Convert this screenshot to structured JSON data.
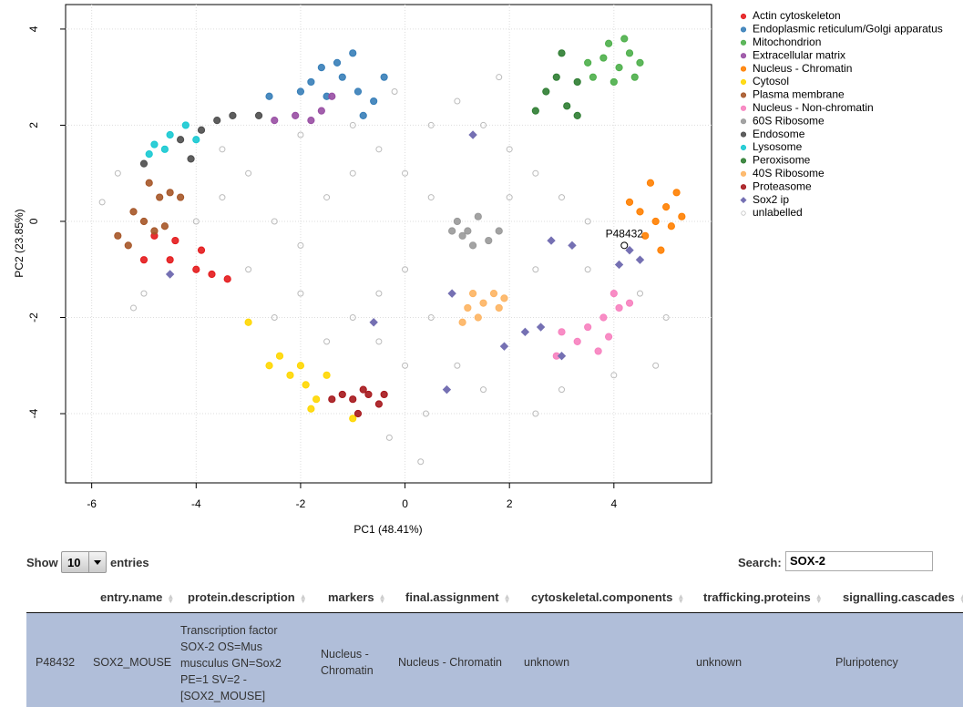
{
  "chart_data": {
    "type": "scatter",
    "xlabel": "PC1 (48.41%)",
    "ylabel": "PC2 (23.85%)",
    "xlim": [
      -6.5,
      5.87
    ],
    "ylim": [
      -5.44,
      4.51
    ],
    "xticks": [
      -6,
      -4,
      -2,
      0,
      2,
      4
    ],
    "yticks": [
      -4,
      -2,
      0,
      2,
      4
    ],
    "grid": true,
    "legend": "right",
    "series": [
      {
        "name": "Actin cytoskeleton",
        "color": "#e41a1c",
        "x": [
          -4.5,
          -4.0,
          -3.7,
          -4.8,
          -3.4,
          -5.0,
          -3.9,
          -4.4
        ],
        "y": [
          -0.8,
          -1.0,
          -1.1,
          -0.3,
          -1.2,
          -0.8,
          -0.6,
          -0.4
        ]
      },
      {
        "name": "Endoplasmic reticulum/Golgi apparatus",
        "color": "#377eb8",
        "x": [
          -1.8,
          -1.5,
          -1.2,
          -0.9,
          -0.6,
          -1.3,
          -1.0,
          -2.0,
          -0.4,
          -1.6,
          -2.6,
          -0.8
        ],
        "y": [
          2.9,
          2.6,
          3.0,
          2.7,
          2.5,
          3.3,
          3.5,
          2.7,
          3.0,
          3.2,
          2.6,
          2.2
        ]
      },
      {
        "name": "Mitochondrion",
        "color": "#4daf4a",
        "x": [
          3.8,
          4.1,
          4.3,
          3.6,
          4.0,
          4.4,
          3.9,
          4.2,
          3.5,
          4.5
        ],
        "y": [
          3.4,
          3.2,
          3.5,
          3.0,
          2.9,
          3.0,
          3.7,
          3.8,
          3.3,
          3.3
        ]
      },
      {
        "name": "Extracellular matrix",
        "color": "#984ea3",
        "x": [
          -2.5,
          -2.1,
          -1.8,
          -1.6,
          -1.4
        ],
        "y": [
          2.1,
          2.2,
          2.1,
          2.3,
          2.6
        ]
      },
      {
        "name": "Nucleus - Chromatin",
        "color": "#ff7f00",
        "x": [
          4.5,
          4.8,
          5.0,
          5.1,
          4.6,
          4.9,
          5.2,
          4.3,
          4.7,
          5.3
        ],
        "y": [
          0.2,
          0.0,
          0.3,
          -0.1,
          -0.3,
          -0.6,
          0.6,
          0.4,
          0.8,
          0.1
        ]
      },
      {
        "name": "Cytosol",
        "color": "#ffd700",
        "x": [
          -2.6,
          -2.2,
          -1.9,
          -1.7,
          -2.0,
          -1.5,
          -2.4,
          -1.8,
          -3.0,
          -1.0
        ],
        "y": [
          -3.0,
          -3.2,
          -3.4,
          -3.7,
          -3.0,
          -3.2,
          -2.8,
          -3.9,
          -2.1,
          -4.1
        ]
      },
      {
        "name": "Plasma membrane",
        "color": "#a65628",
        "x": [
          -5.2,
          -5.0,
          -4.7,
          -4.5,
          -4.3,
          -4.8,
          -5.5,
          -4.9,
          -5.3,
          -4.6
        ],
        "y": [
          0.2,
          0.0,
          0.5,
          0.6,
          0.5,
          -0.2,
          -0.3,
          0.8,
          -0.5,
          -0.1
        ]
      },
      {
        "name": "Nucleus - Non-chromatin",
        "color": "#f781bf",
        "x": [
          3.5,
          3.8,
          4.1,
          3.3,
          3.7,
          4.3,
          3.0,
          3.9,
          2.9,
          4.0
        ],
        "y": [
          -2.2,
          -2.0,
          -1.8,
          -2.5,
          -2.7,
          -1.7,
          -2.3,
          -2.4,
          -2.8,
          -1.5
        ]
      },
      {
        "name": "60S Ribosome",
        "color": "#999999",
        "x": [
          1.0,
          1.2,
          1.4,
          1.1,
          1.6,
          0.9,
          1.3,
          1.8
        ],
        "y": [
          0.0,
          -0.2,
          0.1,
          -0.3,
          -0.4,
          -0.2,
          -0.5,
          -0.2
        ]
      },
      {
        "name": "Endosome",
        "color": "#4d4d4d",
        "x": [
          -5.0,
          -4.3,
          -3.9,
          -3.6,
          -3.3,
          -4.1,
          -2.8
        ],
        "y": [
          1.2,
          1.7,
          1.9,
          2.1,
          2.2,
          1.3,
          2.2
        ]
      },
      {
        "name": "Lysosome",
        "color": "#17c9d2",
        "x": [
          -4.8,
          -4.5,
          -4.2,
          -4.6,
          -4.9,
          -4.0
        ],
        "y": [
          1.6,
          1.8,
          2.0,
          1.5,
          1.4,
          1.7
        ]
      },
      {
        "name": "Peroxisome",
        "color": "#2e7d32",
        "x": [
          2.5,
          2.9,
          3.0,
          3.3,
          3.1,
          2.7,
          3.3
        ],
        "y": [
          2.3,
          3.0,
          3.5,
          2.9,
          2.4,
          2.7,
          2.2
        ]
      },
      {
        "name": "40S Ribosome",
        "color": "#fdb462",
        "x": [
          1.2,
          1.5,
          1.8,
          1.4,
          1.7,
          1.1,
          1.9,
          1.3
        ],
        "y": [
          -1.8,
          -1.7,
          -1.8,
          -2.0,
          -1.5,
          -2.1,
          -1.6,
          -1.5
        ]
      },
      {
        "name": "Proteasome",
        "color": "#a6171c",
        "x": [
          -1.2,
          -1.0,
          -0.7,
          -0.5,
          -0.8,
          -0.4,
          -0.9,
          -1.4
        ],
        "y": [
          -3.6,
          -3.7,
          -3.6,
          -3.8,
          -3.5,
          -3.6,
          -4.0,
          -3.7
        ]
      },
      {
        "name": "Sox2 ip",
        "color": "#7570b3",
        "shape": "diamond",
        "x": [
          4.3,
          4.1,
          4.5,
          3.2,
          3.0,
          2.3,
          2.6,
          1.9,
          -4.5,
          1.3,
          0.9,
          -0.6,
          0.8,
          2.8
        ],
        "y": [
          -0.6,
          -0.9,
          -0.8,
          -0.5,
          -2.8,
          -2.3,
          -2.2,
          -2.6,
          -1.1,
          1.8,
          -1.5,
          -2.1,
          -3.5,
          -0.4
        ]
      },
      {
        "name": "unlabelled",
        "color": "#bbbbbb",
        "shape": "hollow",
        "x": [
          -5.5,
          -5.0,
          -3.5,
          -3.0,
          -2.5,
          -2.0,
          -1.5,
          -1.0,
          -0.5,
          0.0,
          0.5,
          0.0,
          -0.5,
          -1.0,
          -2.0,
          -3.0,
          -2.5,
          -1.5,
          -0.5,
          0.5,
          1.0,
          0.0,
          -0.3,
          0.3,
          0.5,
          1.0,
          1.5,
          2.0,
          2.5,
          3.0,
          3.5,
          2.0,
          2.5,
          3.5,
          4.5,
          5.0,
          4.8,
          4.0,
          3.0,
          2.5,
          1.5,
          -4.0,
          -3.5,
          -2.0,
          -1.0,
          -0.2,
          1.8,
          -5.8,
          -5.2,
          0.4
        ],
        "y": [
          1.0,
          -1.5,
          0.5,
          1.0,
          0.0,
          -0.5,
          0.5,
          1.0,
          1.5,
          1.0,
          0.5,
          -1.0,
          -1.5,
          -2.0,
          -1.5,
          -1.0,
          -2.0,
          -2.5,
          -2.5,
          -2.0,
          -3.0,
          -3.0,
          -4.5,
          -5.0,
          2.0,
          2.5,
          2.0,
          1.5,
          1.0,
          0.5,
          0.0,
          0.5,
          -1.0,
          -1.0,
          -1.5,
          -2.0,
          -3.0,
          -3.2,
          -3.5,
          -4.0,
          -3.5,
          0.0,
          1.5,
          1.8,
          2.0,
          2.7,
          3.0,
          0.4,
          -1.8,
          -4.0
        ]
      }
    ],
    "annotation": {
      "text": "P48432",
      "x": 4.2,
      "y": -0.5,
      "color": "#000000"
    }
  },
  "controls": {
    "show": "Show",
    "length": "10",
    "entries": "entries",
    "search_label": "Search:",
    "search_value": "SOX-2"
  },
  "table": {
    "columns": [
      "entry.name",
      "protein.description",
      "markers",
      "final.assignment",
      "cytoskeletal.components",
      "trafficking.proteins",
      "signalling.cascades"
    ],
    "rows": [
      {
        "id": "P48432",
        "cells": [
          "SOX2_MOUSE",
          "Transcription factor SOX-2 OS=Mus musculus GN=Sox2 PE=1 SV=2 - [SOX2_MOUSE]",
          "Nucleus - Chromatin",
          "Nucleus - Chromatin",
          "unknown",
          "unknown",
          "Pluripotency"
        ]
      }
    ]
  }
}
